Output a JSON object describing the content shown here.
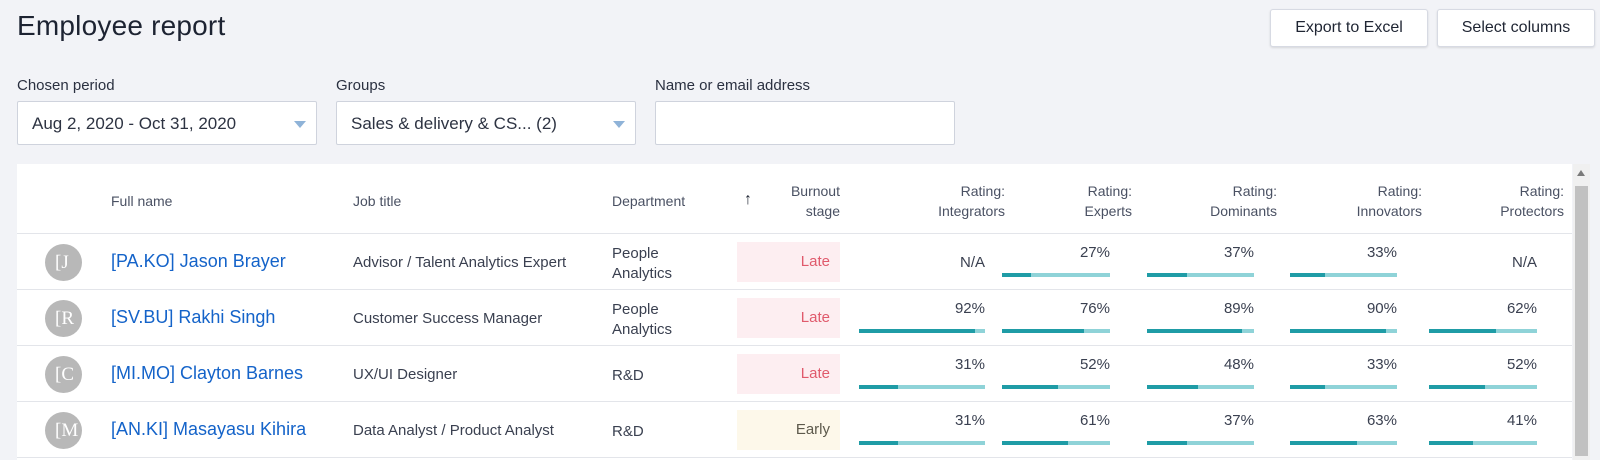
{
  "title": "Employee report",
  "toolbar": {
    "export_label": "Export to Excel",
    "columns_label": "Select columns"
  },
  "filters": {
    "period_label": "Chosen period",
    "period_value": "Aug 2, 2020 - Oct 31, 2020",
    "groups_label": "Groups",
    "groups_value": "Sales & delivery & CS... (2)",
    "search_label": "Name or email address",
    "search_value": ""
  },
  "table": {
    "headers": {
      "full_name": "Full name",
      "job_title": "Job title",
      "department": "Department",
      "burnout_1": "Burnout",
      "burnout_2": "stage",
      "rating": "Rating:",
      "integrators": "Integrators",
      "experts": "Experts",
      "dominants": "Dominants",
      "innovators": "Innovators",
      "protectors": "Protectors"
    },
    "sort_icon": "arrow-up-icon",
    "rows": [
      {
        "initial": "[J",
        "name": "[PA.KO] Jason Brayer",
        "job": "Advisor / Talent Analytics Expert",
        "dept1": "People",
        "dept2": "Analytics",
        "dept_single": "",
        "burnout": "Late",
        "integrators": "N/A",
        "experts": "27%",
        "dominants": "37%",
        "innovators": "33%",
        "protectors": "N/A"
      },
      {
        "initial": "[R",
        "name": "[SV.BU] Rakhi Singh",
        "job": "Customer Success Manager",
        "dept1": "People",
        "dept2": "Analytics",
        "dept_single": "",
        "burnout": "Late",
        "integrators": "92%",
        "experts": "76%",
        "dominants": "89%",
        "innovators": "90%",
        "protectors": "62%"
      },
      {
        "initial": "[C",
        "name": "[MI.MO] Clayton Barnes",
        "job": "UX/UI Designer",
        "dept1": "",
        "dept2": "",
        "dept_single": "R&D",
        "burnout": "Late",
        "integrators": "31%",
        "experts": "52%",
        "dominants": "48%",
        "innovators": "33%",
        "protectors": "52%"
      },
      {
        "initial": "[M",
        "name": "[AN.KI] Masayasu Kihira",
        "job": "Data Analyst / Product Analyst",
        "dept1": "",
        "dept2": "",
        "dept_single": "R&D",
        "burnout": "Early",
        "integrators": "31%",
        "experts": "61%",
        "dominants": "37%",
        "innovators": "63%",
        "protectors": "41%"
      }
    ]
  },
  "colors": {
    "link": "#1463c9",
    "bar_fill": "#1f9ca6",
    "bar_track": "#8fd3d8",
    "late_bg": "#fdeef1",
    "late_text": "#e05a6c",
    "early_bg": "#fdf8ea"
  }
}
